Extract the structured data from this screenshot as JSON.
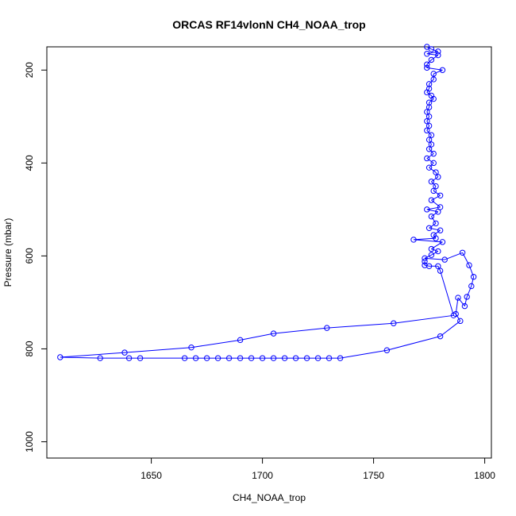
{
  "chart_data": {
    "type": "scatter",
    "title": "ORCAS RF14vlonN CH4_NOAA_trop",
    "xlabel": "CH4_NOAA_trop",
    "ylabel": "Pressure (mbar)",
    "xlim": [
      1603,
      1803
    ],
    "ylim": [
      1035,
      150
    ],
    "y_reversed": true,
    "x_ticks": [
      "1650",
      "1700",
      "1750",
      "1800"
    ],
    "y_ticks": [
      "200",
      "400",
      "600",
      "800",
      "1000"
    ],
    "series_color": "#0000ff",
    "marker": "open-circle",
    "connected": true,
    "grid": false,
    "legend": "none",
    "series": [
      {
        "points": [
          [
            1774,
            150
          ],
          [
            1776,
            155
          ],
          [
            1779,
            160
          ],
          [
            1774,
            165
          ],
          [
            1779,
            168
          ],
          [
            1776,
            178
          ],
          [
            1774,
            188
          ],
          [
            1774,
            195
          ],
          [
            1781,
            200
          ],
          [
            1777,
            208
          ],
          [
            1777,
            220
          ],
          [
            1775,
            230
          ],
          [
            1775,
            240
          ],
          [
            1774,
            248
          ],
          [
            1776,
            255
          ],
          [
            1777,
            262
          ],
          [
            1775,
            270
          ],
          [
            1775,
            280
          ],
          [
            1774,
            290
          ],
          [
            1775,
            300
          ],
          [
            1774,
            310
          ],
          [
            1775,
            320
          ],
          [
            1774,
            330
          ],
          [
            1776,
            340
          ],
          [
            1775,
            350
          ],
          [
            1776,
            360
          ],
          [
            1775,
            370
          ],
          [
            1777,
            380
          ],
          [
            1774,
            390
          ],
          [
            1777,
            400
          ],
          [
            1775,
            410
          ],
          [
            1778,
            420
          ],
          [
            1779,
            430
          ],
          [
            1776,
            440
          ],
          [
            1778,
            450
          ],
          [
            1777,
            460
          ],
          [
            1780,
            470
          ],
          [
            1776,
            480
          ],
          [
            1780,
            495
          ],
          [
            1774,
            500
          ],
          [
            1779,
            505
          ],
          [
            1776,
            515
          ],
          [
            1778,
            530
          ],
          [
            1775,
            540
          ],
          [
            1780,
            545
          ],
          [
            1777,
            555
          ],
          [
            1778,
            562
          ],
          [
            1768,
            565
          ],
          [
            1781,
            570
          ],
          [
            1776,
            585
          ],
          [
            1779,
            590
          ],
          [
            1776,
            598
          ],
          [
            1773,
            605
          ],
          [
            1782,
            608
          ],
          [
            1790,
            593
          ],
          [
            1793,
            620
          ],
          [
            1795,
            645
          ],
          [
            1794,
            665
          ],
          [
            1792,
            688
          ],
          [
            1791,
            708
          ],
          [
            1788,
            690
          ],
          [
            1787,
            725
          ],
          [
            1789,
            740
          ],
          [
            1780,
            773
          ],
          [
            1756,
            803
          ],
          [
            1735,
            820
          ],
          [
            1730,
            820
          ],
          [
            1725,
            820
          ],
          [
            1720,
            820
          ],
          [
            1715,
            820
          ],
          [
            1710,
            820
          ],
          [
            1705,
            820
          ],
          [
            1700,
            820
          ],
          [
            1695,
            820
          ],
          [
            1690,
            820
          ],
          [
            1685,
            820
          ],
          [
            1680,
            820
          ],
          [
            1675,
            820
          ],
          [
            1670,
            820
          ],
          [
            1665,
            820
          ],
          [
            1645,
            820
          ],
          [
            1640,
            820
          ],
          [
            1627,
            820
          ],
          [
            1609,
            818
          ],
          [
            1638,
            808
          ],
          [
            1668,
            797
          ],
          [
            1690,
            781
          ],
          [
            1705,
            767
          ],
          [
            1729,
            755
          ],
          [
            1759,
            745
          ],
          [
            1786,
            728
          ],
          [
            1780,
            632
          ],
          [
            1779,
            622
          ],
          [
            1775,
            622
          ],
          [
            1773,
            620
          ],
          [
            1773,
            612
          ]
        ]
      }
    ]
  }
}
